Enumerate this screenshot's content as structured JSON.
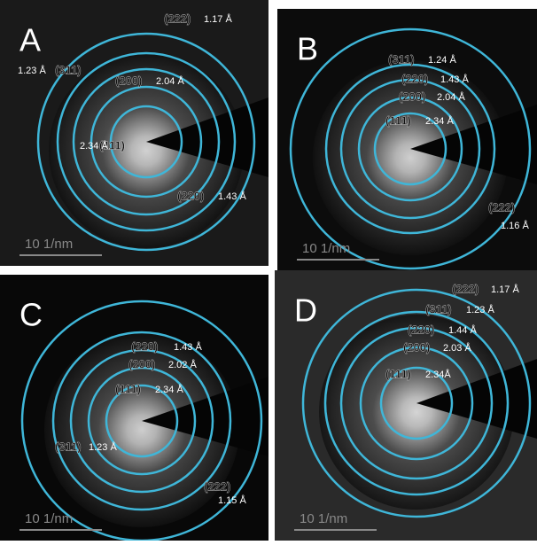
{
  "panels": [
    {
      "letter": "A",
      "scale_bar": "10 1/nm",
      "rings": [
        {
          "index": "(111)",
          "d": "2.34 Å"
        },
        {
          "index": "(200)",
          "d": "2.04 Å"
        },
        {
          "index": "(220)",
          "d": "1.43 Å"
        },
        {
          "index": "(311)",
          "d": "1.23 Å"
        },
        {
          "index": "(222)",
          "d": "1.17 Å"
        }
      ]
    },
    {
      "letter": "B",
      "scale_bar": "10 1/nm",
      "rings": [
        {
          "index": "(111)",
          "d": "2.34 Å"
        },
        {
          "index": "(200)",
          "d": "2.04 Å"
        },
        {
          "index": "(220)",
          "d": "1.43 Å"
        },
        {
          "index": "(311)",
          "d": "1.24 Å"
        },
        {
          "index": "(222)",
          "d": "1.16 Å"
        }
      ]
    },
    {
      "letter": "C",
      "scale_bar": "10 1/nm",
      "rings": [
        {
          "index": "(111)",
          "d": "2.34 Å"
        },
        {
          "index": "(200)",
          "d": "2.02 Å"
        },
        {
          "index": "(220)",
          "d": "1.43 Å"
        },
        {
          "index": "(311)",
          "d": "1.23 Å"
        },
        {
          "index": "(222)",
          "d": "1.15 Å"
        }
      ]
    },
    {
      "letter": "D",
      "scale_bar": "10 1/nm",
      "rings": [
        {
          "index": "(111)",
          "d": "2.34Å"
        },
        {
          "index": "(200)",
          "d": "2.03 Å"
        },
        {
          "index": "(220)",
          "d": "1.44 Å"
        },
        {
          "index": "(311)",
          "d": "1.23 Å"
        },
        {
          "index": "(222)",
          "d": "1.17 Å"
        }
      ]
    }
  ]
}
